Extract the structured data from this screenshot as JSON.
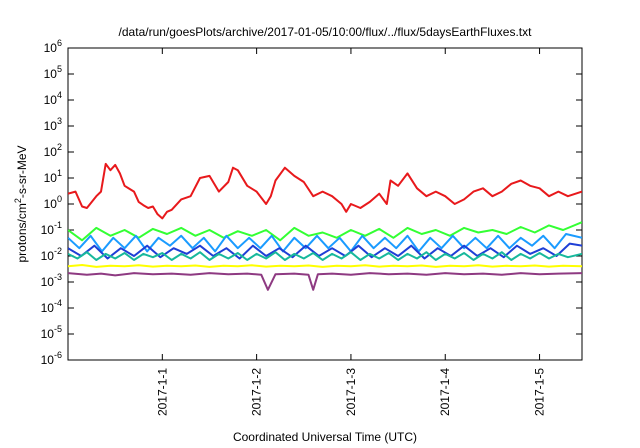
{
  "chart_data": {
    "type": "line",
    "title": "/data/run/goesPlots/archive/2017-01-05/10:00/flux/../flux/5daysEarthFluxes.txt",
    "xlabel": "Coordinated Universal Time (UTC)",
    "ylabel": "protons/cm²-s-sr-MeV",
    "yscale": "log",
    "ylim": [
      1e-06,
      1000000.0
    ],
    "xlim_days": [
      0,
      5.45
    ],
    "x_ticks": [
      {
        "label": "2017-1-1",
        "day": 1
      },
      {
        "label": "2017-1-2",
        "day": 2
      },
      {
        "label": "2017-1-3",
        "day": 3
      },
      {
        "label": "2017-1-4",
        "day": 4
      },
      {
        "label": "2017-1-5",
        "day": 5
      }
    ],
    "y_ticks": [
      {
        "base": "10",
        "exp": "-6",
        "value": 1e-06
      },
      {
        "base": "10",
        "exp": "-5",
        "value": 1e-05
      },
      {
        "base": "10",
        "exp": "-4",
        "value": 0.0001
      },
      {
        "base": "10",
        "exp": "-3",
        "value": 0.001
      },
      {
        "base": "10",
        "exp": "-2",
        "value": 0.01
      },
      {
        "base": "10",
        "exp": "-1",
        "value": 0.1
      },
      {
        "base": "10",
        "exp": "0",
        "value": 1
      },
      {
        "base": "10",
        "exp": "1",
        "value": 10
      },
      {
        "base": "10",
        "exp": "2",
        "value": 100
      },
      {
        "base": "10",
        "exp": "3",
        "value": 1000
      },
      {
        "base": "10",
        "exp": "4",
        "value": 10000
      },
      {
        "base": "10",
        "exp": "5",
        "value": 100000
      },
      {
        "base": "10",
        "exp": "6",
        "value": 1000000
      }
    ],
    "grid": false,
    "series": [
      {
        "color": "#e8191c",
        "x": [
          0,
          0.08,
          0.15,
          0.2,
          0.3,
          0.35,
          0.4,
          0.45,
          0.5,
          0.55,
          0.6,
          0.7,
          0.75,
          0.8,
          0.85,
          0.9,
          0.95,
          1.0,
          1.05,
          1.1,
          1.2,
          1.3,
          1.4,
          1.5,
          1.6,
          1.7,
          1.75,
          1.8,
          1.9,
          2.0,
          2.1,
          2.15,
          2.2,
          2.3,
          2.4,
          2.5,
          2.6,
          2.7,
          2.8,
          2.9,
          2.95,
          3.0,
          3.1,
          3.2,
          3.3,
          3.38,
          3.42,
          3.5,
          3.6,
          3.7,
          3.8,
          3.9,
          4.0,
          4.1,
          4.2,
          4.3,
          4.4,
          4.5,
          4.6,
          4.7,
          4.8,
          4.9,
          5.0,
          5.1,
          5.2,
          5.3,
          5.45
        ],
        "y": [
          2.5,
          3,
          0.8,
          0.7,
          2,
          3,
          35,
          20,
          32,
          15,
          5,
          3,
          1.2,
          0.9,
          0.7,
          0.8,
          0.4,
          0.28,
          0.5,
          0.6,
          1.5,
          2,
          10,
          12,
          3,
          7,
          25,
          20,
          5,
          3,
          1,
          2,
          8,
          25,
          12,
          7,
          2,
          3,
          2,
          1,
          0.5,
          1,
          0.7,
          1.2,
          2.5,
          1,
          8,
          5,
          15,
          4,
          2,
          3,
          2,
          1,
          1.5,
          3,
          4,
          2,
          3,
          6,
          8,
          5,
          4,
          2,
          3,
          2,
          3
        ]
      },
      {
        "color": "#33ff33",
        "x": [
          0,
          0.15,
          0.3,
          0.45,
          0.6,
          0.75,
          0.9,
          1.05,
          1.2,
          1.35,
          1.5,
          1.65,
          1.8,
          1.95,
          2.1,
          2.25,
          2.4,
          2.55,
          2.7,
          2.85,
          3.0,
          3.15,
          3.3,
          3.45,
          3.6,
          3.75,
          3.9,
          4.05,
          4.2,
          4.35,
          4.5,
          4.65,
          4.8,
          4.95,
          5.1,
          5.25,
          5.45
        ],
        "y": [
          0.1,
          0.04,
          0.12,
          0.06,
          0.1,
          0.05,
          0.11,
          0.07,
          0.12,
          0.06,
          0.1,
          0.05,
          0.09,
          0.06,
          0.1,
          0.04,
          0.12,
          0.06,
          0.08,
          0.05,
          0.1,
          0.06,
          0.11,
          0.05,
          0.12,
          0.07,
          0.1,
          0.06,
          0.12,
          0.08,
          0.1,
          0.07,
          0.13,
          0.08,
          0.15,
          0.1,
          0.2
        ]
      },
      {
        "color": "#1a9bff",
        "x": [
          0,
          0.12,
          0.24,
          0.36,
          0.48,
          0.6,
          0.72,
          0.84,
          0.96,
          1.08,
          1.2,
          1.32,
          1.44,
          1.56,
          1.68,
          1.8,
          1.92,
          2.04,
          2.16,
          2.28,
          2.4,
          2.52,
          2.64,
          2.76,
          2.88,
          3.0,
          3.12,
          3.24,
          3.36,
          3.48,
          3.6,
          3.72,
          3.84,
          3.96,
          4.08,
          4.2,
          4.32,
          4.44,
          4.56,
          4.68,
          4.8,
          4.92,
          5.04,
          5.16,
          5.28,
          5.45
        ],
        "y": [
          0.05,
          0.02,
          0.06,
          0.015,
          0.05,
          0.02,
          0.06,
          0.015,
          0.05,
          0.025,
          0.06,
          0.02,
          0.05,
          0.015,
          0.06,
          0.02,
          0.05,
          0.02,
          0.06,
          0.015,
          0.05,
          0.02,
          0.06,
          0.02,
          0.05,
          0.015,
          0.06,
          0.02,
          0.05,
          0.02,
          0.06,
          0.015,
          0.05,
          0.02,
          0.06,
          0.02,
          0.05,
          0.02,
          0.06,
          0.02,
          0.05,
          0.025,
          0.06,
          0.02,
          0.07,
          0.05
        ]
      },
      {
        "color": "#1f3fd6",
        "x": [
          0,
          0.14,
          0.28,
          0.42,
          0.56,
          0.7,
          0.84,
          0.98,
          1.12,
          1.26,
          1.4,
          1.54,
          1.68,
          1.82,
          1.96,
          2.1,
          2.24,
          2.38,
          2.52,
          2.66,
          2.8,
          2.94,
          3.08,
          3.22,
          3.36,
          3.5,
          3.64,
          3.78,
          3.92,
          4.06,
          4.2,
          4.34,
          4.48,
          4.62,
          4.76,
          4.9,
          5.04,
          5.18,
          5.32,
          5.45
        ],
        "y": [
          0.02,
          0.01,
          0.025,
          0.008,
          0.02,
          0.01,
          0.025,
          0.009,
          0.02,
          0.012,
          0.025,
          0.01,
          0.02,
          0.008,
          0.025,
          0.01,
          0.02,
          0.009,
          0.025,
          0.01,
          0.02,
          0.01,
          0.025,
          0.009,
          0.02,
          0.01,
          0.025,
          0.008,
          0.02,
          0.01,
          0.025,
          0.01,
          0.02,
          0.009,
          0.025,
          0.012,
          0.02,
          0.01,
          0.03,
          0.025
        ]
      },
      {
        "color": "#17b89c",
        "x": [
          0,
          0.1,
          0.2,
          0.3,
          0.4,
          0.5,
          0.6,
          0.7,
          0.8,
          0.9,
          1.0,
          1.1,
          1.2,
          1.3,
          1.4,
          1.5,
          1.6,
          1.7,
          1.8,
          1.9,
          2.0,
          2.1,
          2.2,
          2.3,
          2.4,
          2.5,
          2.6,
          2.7,
          2.8,
          2.9,
          3.0,
          3.1,
          3.2,
          3.3,
          3.4,
          3.5,
          3.6,
          3.7,
          3.8,
          3.9,
          4.0,
          4.1,
          4.2,
          4.3,
          4.4,
          4.5,
          4.6,
          4.7,
          4.8,
          4.9,
          5.0,
          5.1,
          5.2,
          5.3,
          5.45
        ],
        "y": [
          0.012,
          0.008,
          0.014,
          0.007,
          0.012,
          0.008,
          0.013,
          0.007,
          0.012,
          0.009,
          0.013,
          0.007,
          0.012,
          0.008,
          0.014,
          0.007,
          0.012,
          0.008,
          0.013,
          0.007,
          0.012,
          0.008,
          0.014,
          0.007,
          0.012,
          0.008,
          0.013,
          0.007,
          0.012,
          0.008,
          0.014,
          0.007,
          0.012,
          0.008,
          0.013,
          0.007,
          0.012,
          0.008,
          0.014,
          0.007,
          0.012,
          0.008,
          0.013,
          0.007,
          0.012,
          0.008,
          0.014,
          0.007,
          0.012,
          0.008,
          0.013,
          0.008,
          0.012,
          0.009,
          0.012
        ]
      },
      {
        "color": "#ffff00",
        "x": [
          0,
          0.15,
          0.3,
          0.45,
          0.6,
          0.75,
          0.9,
          1.05,
          1.2,
          1.35,
          1.5,
          1.65,
          1.8,
          1.95,
          2.1,
          2.25,
          2.4,
          2.55,
          2.7,
          2.85,
          3.0,
          3.15,
          3.3,
          3.45,
          3.6,
          3.75,
          3.9,
          4.05,
          4.2,
          4.35,
          4.5,
          4.65,
          4.8,
          4.95,
          5.1,
          5.25,
          5.45
        ],
        "y": [
          0.004,
          0.0045,
          0.0038,
          0.0042,
          0.004,
          0.0044,
          0.0039,
          0.0042,
          0.004,
          0.0043,
          0.0038,
          0.0042,
          0.004,
          0.0044,
          0.0039,
          0.0042,
          0.004,
          0.0043,
          0.0038,
          0.0042,
          0.004,
          0.0044,
          0.0039,
          0.0042,
          0.004,
          0.0043,
          0.0038,
          0.0042,
          0.004,
          0.0044,
          0.0039,
          0.0042,
          0.004,
          0.0043,
          0.0039,
          0.0042,
          0.004
        ]
      },
      {
        "color": "#8e3a82",
        "x": [
          0,
          0.2,
          0.35,
          0.5,
          0.7,
          0.9,
          1.1,
          1.3,
          1.5,
          1.7,
          1.9,
          2.05,
          2.12,
          2.2,
          2.4,
          2.55,
          2.6,
          2.65,
          2.8,
          3.0,
          3.2,
          3.4,
          3.6,
          3.8,
          4.0,
          4.2,
          4.4,
          4.6,
          4.8,
          5.0,
          5.2,
          5.45
        ],
        "y": [
          0.0022,
          0.0019,
          0.0021,
          0.0018,
          0.0022,
          0.002,
          0.0021,
          0.0019,
          0.0022,
          0.002,
          0.0021,
          0.0019,
          0.0005,
          0.002,
          0.0021,
          0.0019,
          0.0005,
          0.002,
          0.0021,
          0.0019,
          0.0022,
          0.002,
          0.0021,
          0.0019,
          0.0022,
          0.002,
          0.0021,
          0.0019,
          0.0022,
          0.002,
          0.0021,
          0.0022
        ]
      }
    ]
  }
}
